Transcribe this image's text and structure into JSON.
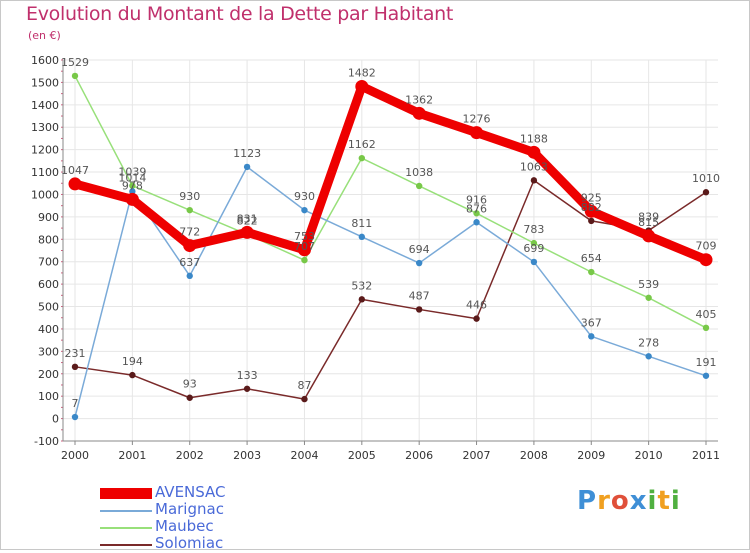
{
  "header": {
    "title": "Evolution du Montant de la Dette par Habitant",
    "unit": "(en €)"
  },
  "brand": {
    "letters": [
      "P",
      "r",
      "o",
      "x",
      "i",
      "t",
      "i"
    ],
    "colors": [
      "#3f8fd6",
      "#f0a020",
      "#e0503a",
      "#3f8fd6",
      "#50b040",
      "#f0a020",
      "#50b040"
    ]
  },
  "colors": {
    "title": "#c0306c",
    "axis": "#888888",
    "grid": "#e6e6e6",
    "tick_label": "#333333",
    "data_label": "#555555"
  },
  "chart_data": {
    "type": "line",
    "title": "Evolution du Montant de la Dette par Habitant",
    "subtitle": "(en €)",
    "x": [
      "2000",
      "2001",
      "2002",
      "2003",
      "2004",
      "2005",
      "2006",
      "2007",
      "2008",
      "2009",
      "2010",
      "2011"
    ],
    "ylim": [
      -100,
      1600
    ],
    "yticks": [
      -100,
      0,
      100,
      200,
      300,
      400,
      500,
      600,
      700,
      800,
      900,
      1000,
      1100,
      1200,
      1300,
      1400,
      1500,
      1600
    ],
    "grid": true,
    "legend_position": "bottom-left",
    "series": [
      {
        "name": "Solomiac",
        "color": "#7a2a2a",
        "marker": "#5a1a1a",
        "values": [
          231,
          194,
          93,
          133,
          87,
          532,
          487,
          446,
          1063,
          882,
          839,
          1010
        ]
      },
      {
        "name": "Maubec",
        "color": "#98e07a",
        "marker": "#78c848",
        "values": [
          1529,
          1039,
          930,
          822,
          707,
          1162,
          1038,
          916,
          783,
          654,
          539,
          405
        ]
      },
      {
        "name": "Marignac",
        "color": "#7aaad8",
        "marker": "#3a88c8",
        "values": [
          7,
          1014,
          637,
          1123,
          930,
          811,
          694,
          876,
          699,
          367,
          278,
          191
        ]
      },
      {
        "name": "AVENSAC",
        "color": "#ee0000",
        "marker": "#ee0000",
        "values": [
          1047,
          978,
          772,
          831,
          753,
          1482,
          1362,
          1276,
          1188,
          925,
          815,
          709
        ]
      }
    ],
    "legend": [
      "AVENSAC",
      "Marignac",
      "Maubec",
      "Solomiac"
    ]
  }
}
